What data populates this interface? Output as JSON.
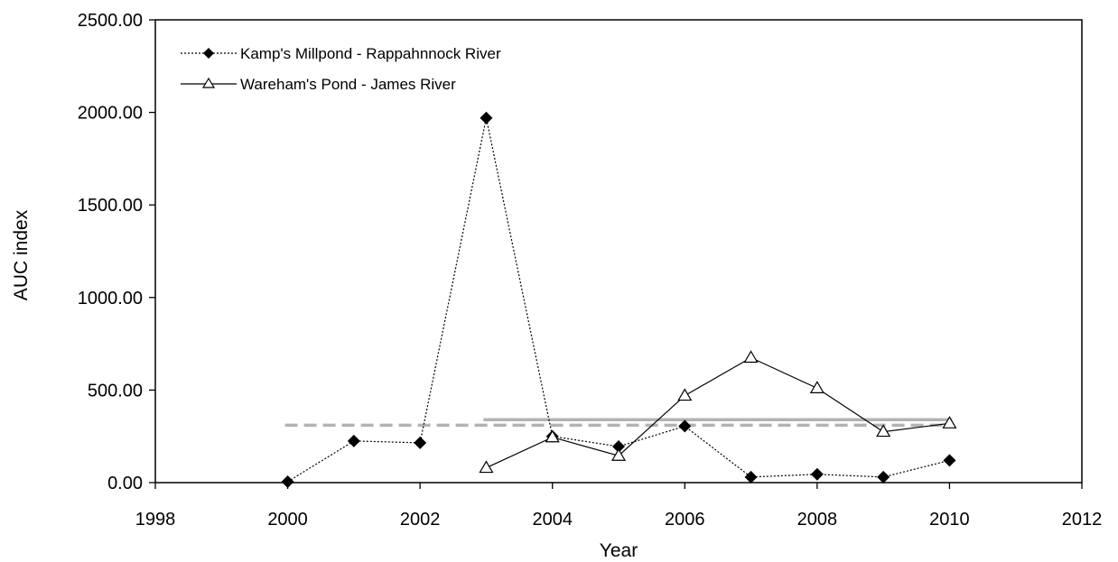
{
  "chart_data": {
    "type": "scatter",
    "title": "",
    "xlabel": "Year",
    "ylabel": "AUC index",
    "xlim": [
      1998,
      2012
    ],
    "ylim": [
      0,
      2500
    ],
    "x_ticks": [
      "1998",
      "2000",
      "2002",
      "2004",
      "2006",
      "2008",
      "2010",
      "2012"
    ],
    "y_ticks": [
      "0.00",
      "500.00",
      "1000.00",
      "1500.00",
      "2000.00",
      "2500.00"
    ],
    "grid": false,
    "legend_position": "top-left",
    "series": [
      {
        "name": "Kamp's Millpond - Rappahnnock River",
        "style": "dotted-line-filled-diamond",
        "color": "#000000",
        "x": [
          2000,
          2001,
          2002,
          2003,
          2004,
          2005,
          2006,
          2007,
          2008,
          2009,
          2010
        ],
        "y": [
          5,
          225,
          215,
          1970,
          250,
          195,
          305,
          30,
          45,
          30,
          120
        ]
      },
      {
        "name": "Wareham's Pond - James River",
        "style": "solid-line-open-triangle",
        "color": "#000000",
        "x": [
          2003,
          2004,
          2005,
          2006,
          2007,
          2008,
          2009,
          2010
        ],
        "y": [
          80,
          245,
          145,
          470,
          675,
          510,
          275,
          320
        ]
      }
    ],
    "reference_lines": [
      {
        "style": "dashed",
        "color": "#b3b3b3",
        "x": [
          2000,
          2010
        ],
        "y": 310
      },
      {
        "style": "solid",
        "color": "#b3b3b3",
        "x": [
          2003,
          2010
        ],
        "y": 340
      }
    ]
  }
}
